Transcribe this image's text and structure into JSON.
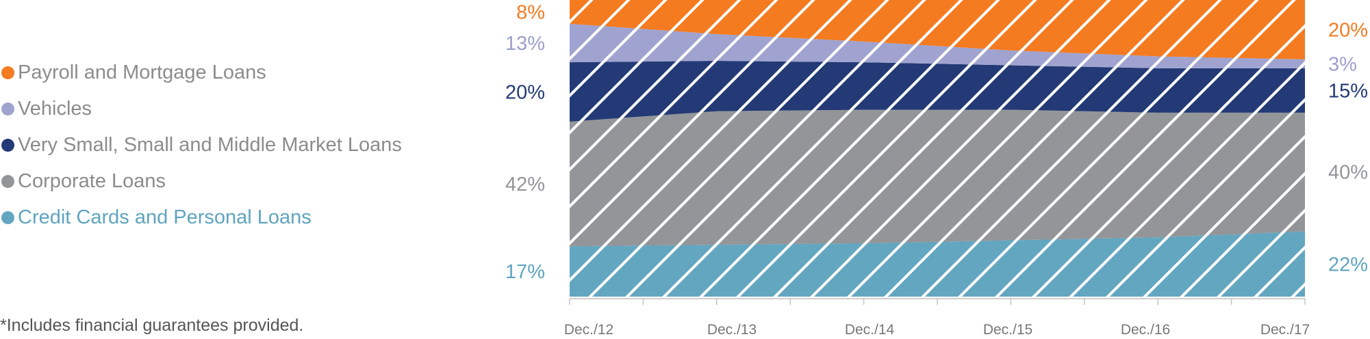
{
  "chart_data": {
    "type": "area",
    "stacked": true,
    "percent": true,
    "categories": [
      "Dec./12",
      "Dec./13",
      "Dec./14",
      "Dec./15",
      "Dec./16",
      "Dec./17"
    ],
    "ylim": [
      0,
      100
    ],
    "series": [
      {
        "key": "credit",
        "name": "Credit Cards and Personal Loans",
        "color": "#63a6c0",
        "label_color": "#5fa4bf",
        "values": [
          17,
          17.5,
          18,
          19,
          20,
          22
        ],
        "start_label": "17%",
        "end_label": "22%"
      },
      {
        "key": "corporate",
        "name": "Corporate Loans",
        "color": "#939598",
        "label_color": "#939598",
        "values": [
          42,
          45,
          45,
          44,
          42,
          40
        ],
        "start_label": "42%",
        "end_label": "40%"
      },
      {
        "key": "sme",
        "name": "Very Small, Small and Middle Market Loans",
        "color": "#233a76",
        "label_color": "#233a76",
        "values": [
          20,
          17,
          16,
          15,
          15,
          15
        ],
        "start_label": "20%",
        "end_label": "15%"
      },
      {
        "key": "vehicles",
        "name": "Vehicles",
        "color": "#a0a3cf",
        "label_color": "#9c9fcb",
        "values": [
          13,
          9,
          7,
          5,
          4,
          3
        ],
        "start_label": "13%",
        "end_label": "3%"
      },
      {
        "key": "payroll",
        "name": "Payroll and Mortgage Loans",
        "color": "#f47b20",
        "label_color": "#f47b20",
        "values": [
          8,
          11.5,
          14,
          17,
          19,
          20
        ],
        "start_label": "8%",
        "end_label": "20%"
      }
    ]
  },
  "legend": {
    "items": [
      {
        "label": "Payroll and Mortgage Loans",
        "color": "#f47b20",
        "text_color": "#8c8c8c"
      },
      {
        "label": "Vehicles",
        "color": "#a0a3cf",
        "text_color": "#8c8c8c"
      },
      {
        "label": "Very Small, Small and Middle Market Loans",
        "color": "#233a76",
        "text_color": "#8c8c8c"
      },
      {
        "label": "Corporate Loans",
        "color": "#939598",
        "text_color": "#8c8c8c"
      },
      {
        "label": "Credit Cards and Personal Loans",
        "color": "#63a6c0",
        "text_color": "#5fa4bf"
      }
    ]
  },
  "footnote": "*Includes financial guarantees provided."
}
